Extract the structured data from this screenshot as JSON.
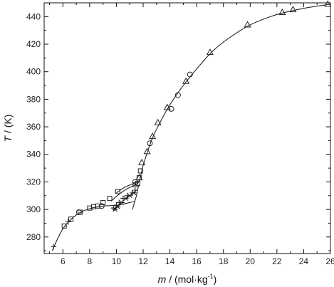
{
  "chart_data": {
    "type": "scatter",
    "xlabel": {
      "symbol": "m",
      "unit": " / (mol·kg",
      "exp": "-1",
      "close": ")"
    },
    "ylabel": {
      "symbol": "T",
      "unit": " / (K)"
    },
    "xlim": [
      4.6,
      26
    ],
    "ylim": [
      268,
      450
    ],
    "xticks": [
      "6",
      "8",
      "10",
      "12",
      "14",
      "16",
      "18",
      "20",
      "22",
      "24",
      "26"
    ],
    "yticks": [
      "280",
      "300",
      "320",
      "340",
      "360",
      "380",
      "400",
      "420",
      "440"
    ],
    "grid": false,
    "colors": {
      "axis": "#111111",
      "marker": "#222222",
      "curve": "#111111"
    },
    "series": [
      {
        "marker": "square",
        "points": [
          [
            6.1,
            288
          ],
          [
            6.6,
            293
          ],
          [
            7.3,
            298
          ],
          [
            8.0,
            301
          ],
          [
            8.3,
            302
          ],
          [
            8.6,
            302.5
          ],
          [
            9.0,
            305
          ],
          [
            9.5,
            308
          ],
          [
            10.1,
            313
          ],
          [
            11.4,
            318
          ],
          [
            11.6,
            319
          ],
          [
            11.7,
            323
          ],
          [
            11.8,
            328
          ]
        ]
      },
      {
        "marker": "circle",
        "points": [
          [
            7.2,
            298
          ],
          [
            8.9,
            302.5
          ],
          [
            11.4,
            320
          ],
          [
            12.5,
            348
          ],
          [
            14.1,
            373
          ],
          [
            14.6,
            383
          ],
          [
            15.5,
            398
          ]
        ]
      },
      {
        "marker": "triangle",
        "points": [
          [
            11.7,
            323
          ],
          [
            11.9,
            334
          ],
          [
            12.3,
            342
          ],
          [
            12.7,
            353
          ],
          [
            13.1,
            363
          ],
          [
            13.8,
            374
          ],
          [
            15.2,
            393
          ],
          [
            17.0,
            414
          ],
          [
            19.8,
            434
          ],
          [
            22.4,
            443
          ],
          [
            23.2,
            445
          ],
          [
            25.8,
            449
          ]
        ]
      },
      {
        "marker": "cross",
        "points": [
          [
            5.3,
            273
          ],
          [
            6.4,
            291
          ],
          [
            9.8,
            301
          ],
          [
            10.0,
            303
          ],
          [
            10.2,
            305
          ],
          [
            10.5,
            308
          ],
          [
            10.8,
            310
          ],
          [
            11.2,
            312
          ],
          [
            11.4,
            314
          ]
        ]
      },
      {
        "marker": "asterisk",
        "points": [
          [
            9.9,
            300
          ],
          [
            10.1,
            302
          ],
          [
            10.4,
            305
          ],
          [
            10.7,
            308
          ],
          [
            11.0,
            310
          ],
          [
            11.3,
            312
          ]
        ]
      }
    ],
    "curves": [
      {
        "points": [
          [
            5.2,
            270
          ],
          [
            6.0,
            286
          ],
          [
            7.0,
            296
          ],
          [
            8.0,
            300.5
          ],
          [
            9.0,
            302.5
          ],
          [
            10.0,
            303
          ],
          [
            11.0,
            305
          ],
          [
            11.4,
            306
          ]
        ]
      },
      {
        "points": [
          [
            9.6,
            306
          ],
          [
            10.2,
            311
          ],
          [
            10.8,
            315
          ],
          [
            11.6,
            319
          ],
          [
            11.8,
            324
          ],
          [
            12.0,
            332
          ],
          [
            12.3,
            341
          ],
          [
            12.7,
            352
          ],
          [
            13.2,
            362
          ],
          [
            14.0,
            376
          ],
          [
            15.0,
            390
          ],
          [
            16.0,
            402
          ],
          [
            17.2,
            415
          ],
          [
            18.5,
            425
          ],
          [
            20.0,
            434
          ],
          [
            22.0,
            441.5
          ],
          [
            24.0,
            446
          ],
          [
            26.0,
            449
          ]
        ]
      },
      {
        "points": [
          [
            9.8,
            300
          ],
          [
            10.3,
            304.5
          ],
          [
            10.8,
            308.5
          ],
          [
            11.2,
            311.5
          ],
          [
            11.5,
            314
          ]
        ]
      },
      {
        "points": [
          [
            11.2,
            300
          ],
          [
            11.35,
            305
          ],
          [
            11.5,
            310
          ],
          [
            11.6,
            315
          ],
          [
            11.7,
            318
          ]
        ]
      },
      {
        "points": [
          [
            10.0,
            312
          ],
          [
            10.6,
            316
          ],
          [
            11.2,
            318.5
          ],
          [
            11.6,
            320
          ]
        ]
      }
    ]
  }
}
